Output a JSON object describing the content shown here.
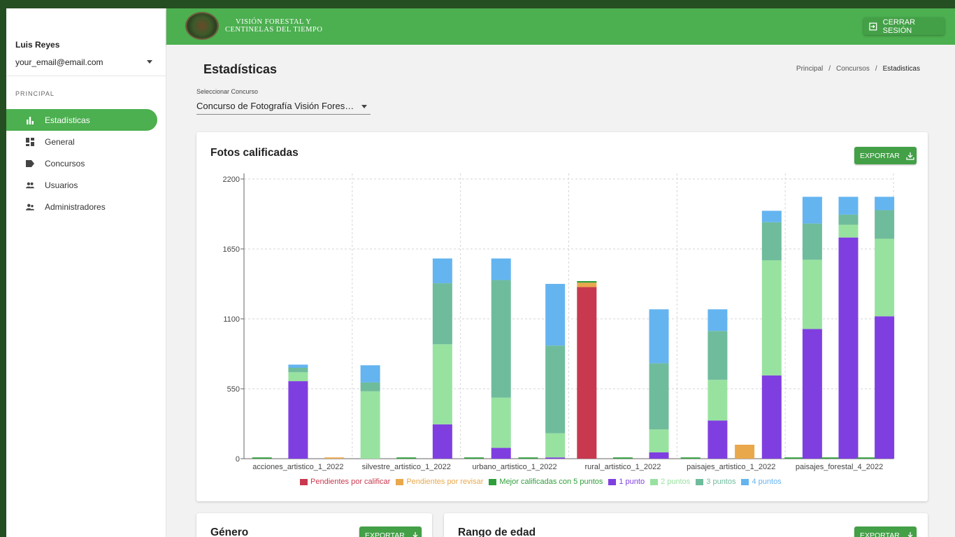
{
  "user": {
    "name": "Luis Reyes",
    "email": "your_email@email.com"
  },
  "sidebar": {
    "section_label": "PRINCIPAL",
    "items": [
      {
        "label": "Estadísticas",
        "icon": "bar-chart-icon",
        "active": true
      },
      {
        "label": "General",
        "icon": "dashboard-icon",
        "active": false
      },
      {
        "label": "Concursos",
        "icon": "label-icon",
        "active": false
      },
      {
        "label": "Usuarios",
        "icon": "people-icon",
        "active": false
      },
      {
        "label": "Administradores",
        "icon": "supervisor-icon",
        "active": false
      }
    ]
  },
  "header": {
    "logo_line1": "VISIÓN FORESTAL Y",
    "logo_line2": "CENTINELAS DEL TIEMPO",
    "logout_label": "CERRAR SESIÓN"
  },
  "page": {
    "title": "Estadísticas",
    "breadcrumb": [
      "Principal",
      "Concursos",
      "Estadisticas"
    ],
    "select_label": "Seleccionar Concurso",
    "select_value": "Concurso de Fotografía Visión Forestal y Centinelas del Tiempo"
  },
  "cards": {
    "fotos_title": "Fotos calificadas",
    "genero_title": "Género",
    "edad_title": "Rango de edad",
    "export_label": "EXPORTAR"
  },
  "colors": {
    "brand_green": "#4caf50",
    "pendientes_calificar": "#c8394f",
    "pendientes_revisar": "#e9a84c",
    "mejor_5": "#2e9e3a",
    "p1": "#7f3fe0",
    "p2": "#98e2a0",
    "p3": "#6fbc9c",
    "p4": "#64b4f0"
  },
  "chart_data": {
    "type": "bar",
    "stacked": true,
    "title": "Fotos calificadas",
    "ylim": [
      0,
      2200
    ],
    "yticks": [
      0,
      550,
      1100,
      1650,
      2200
    ],
    "grid": true,
    "legend_position": "bottom",
    "x_tick_labels": [
      "acciones_artistico_1_2022",
      "silvestre_artistico_1_2022",
      "urbano_artistico_1_2022",
      "rural_artistico_1_2022",
      "paisajes_artistico_1_2022",
      "paisajes_forestal_4_2022"
    ],
    "groups": [
      {
        "sub": [
          {
            "Mejor calificadas con 5 puntos": 10
          },
          {
            "1 punto": 610,
            "2 puntos": 70,
            "3 puntos": 35,
            "4 puntos": 25
          },
          {
            "Pendientes por revisar": 10
          }
        ]
      },
      {
        "sub": [
          {
            "2 puntos": 530,
            "3 puntos": 70,
            "4 puntos": 135
          },
          {
            "Mejor calificadas con 5 puntos": 10
          },
          {
            "1 punto": 270,
            "2 puntos": 630,
            "3 puntos": 480,
            "4 puntos": 195
          }
        ]
      },
      {
        "sub": [
          {
            "Mejor calificadas con 5 puntos": 10
          },
          {
            "1 punto": 85,
            "2 puntos": 395,
            "3 puntos": 925,
            "4 puntos": 170
          },
          {
            "Mejor calificadas con 5 puntos": 10
          },
          {
            "1 punto": 10,
            "2 puntos": 190,
            "3 puntos": 690,
            "4 puntos": 485
          }
        ]
      },
      {
        "sub": [
          {
            "Pendientes por calificar": 1350,
            "Pendientes por revisar": 35,
            "Mejor calificadas con 5 puntos": 12
          },
          {
            "Mejor calificadas con 5 puntos": 10
          },
          {
            "1 punto": 50,
            "2 puntos": 180,
            "3 puntos": 520,
            "4 puntos": 425
          }
        ]
      },
      {
        "sub": [
          {
            "Mejor calificadas con 5 puntos": 10
          },
          {
            "1 punto": 300,
            "2 puntos": 320,
            "3 puntos": 385,
            "4 puntos": 170
          },
          {
            "Pendientes por revisar": 110
          },
          {
            "1 punto": 655,
            "2 puntos": 905,
            "3 puntos": 300,
            "4 puntos": 90
          }
        ]
      },
      {
        "sub": [
          {
            "Mejor calificadas con 5 puntos": 10
          },
          {
            "1 punto": 1020,
            "2 puntos": 545,
            "3 puntos": 285,
            "4 puntos": 210
          },
          {
            "Mejor calificadas con 5 puntos": 10
          },
          {
            "1 punto": 1740,
            "2 puntos": 100,
            "3 puntos": 80,
            "4 puntos": 140
          },
          {
            "Mejor calificadas con 5 puntos": 10
          },
          {
            "1 punto": 1120,
            "2 puntos": 610,
            "3 puntos": 225,
            "4 puntos": 105
          }
        ]
      }
    ],
    "series": [
      {
        "name": "Pendientes por calificar",
        "color": "#c8394f"
      },
      {
        "name": "Pendientes por revisar",
        "color": "#e9a84c"
      },
      {
        "name": "Mejor calificadas con 5 puntos",
        "color": "#2e9e3a"
      },
      {
        "name": "1 punto",
        "color": "#7f3fe0"
      },
      {
        "name": "2 puntos",
        "color": "#98e2a0"
      },
      {
        "name": "3 puntos",
        "color": "#6fbc9c"
      },
      {
        "name": "4 puntos",
        "color": "#64b4f0"
      }
    ]
  }
}
